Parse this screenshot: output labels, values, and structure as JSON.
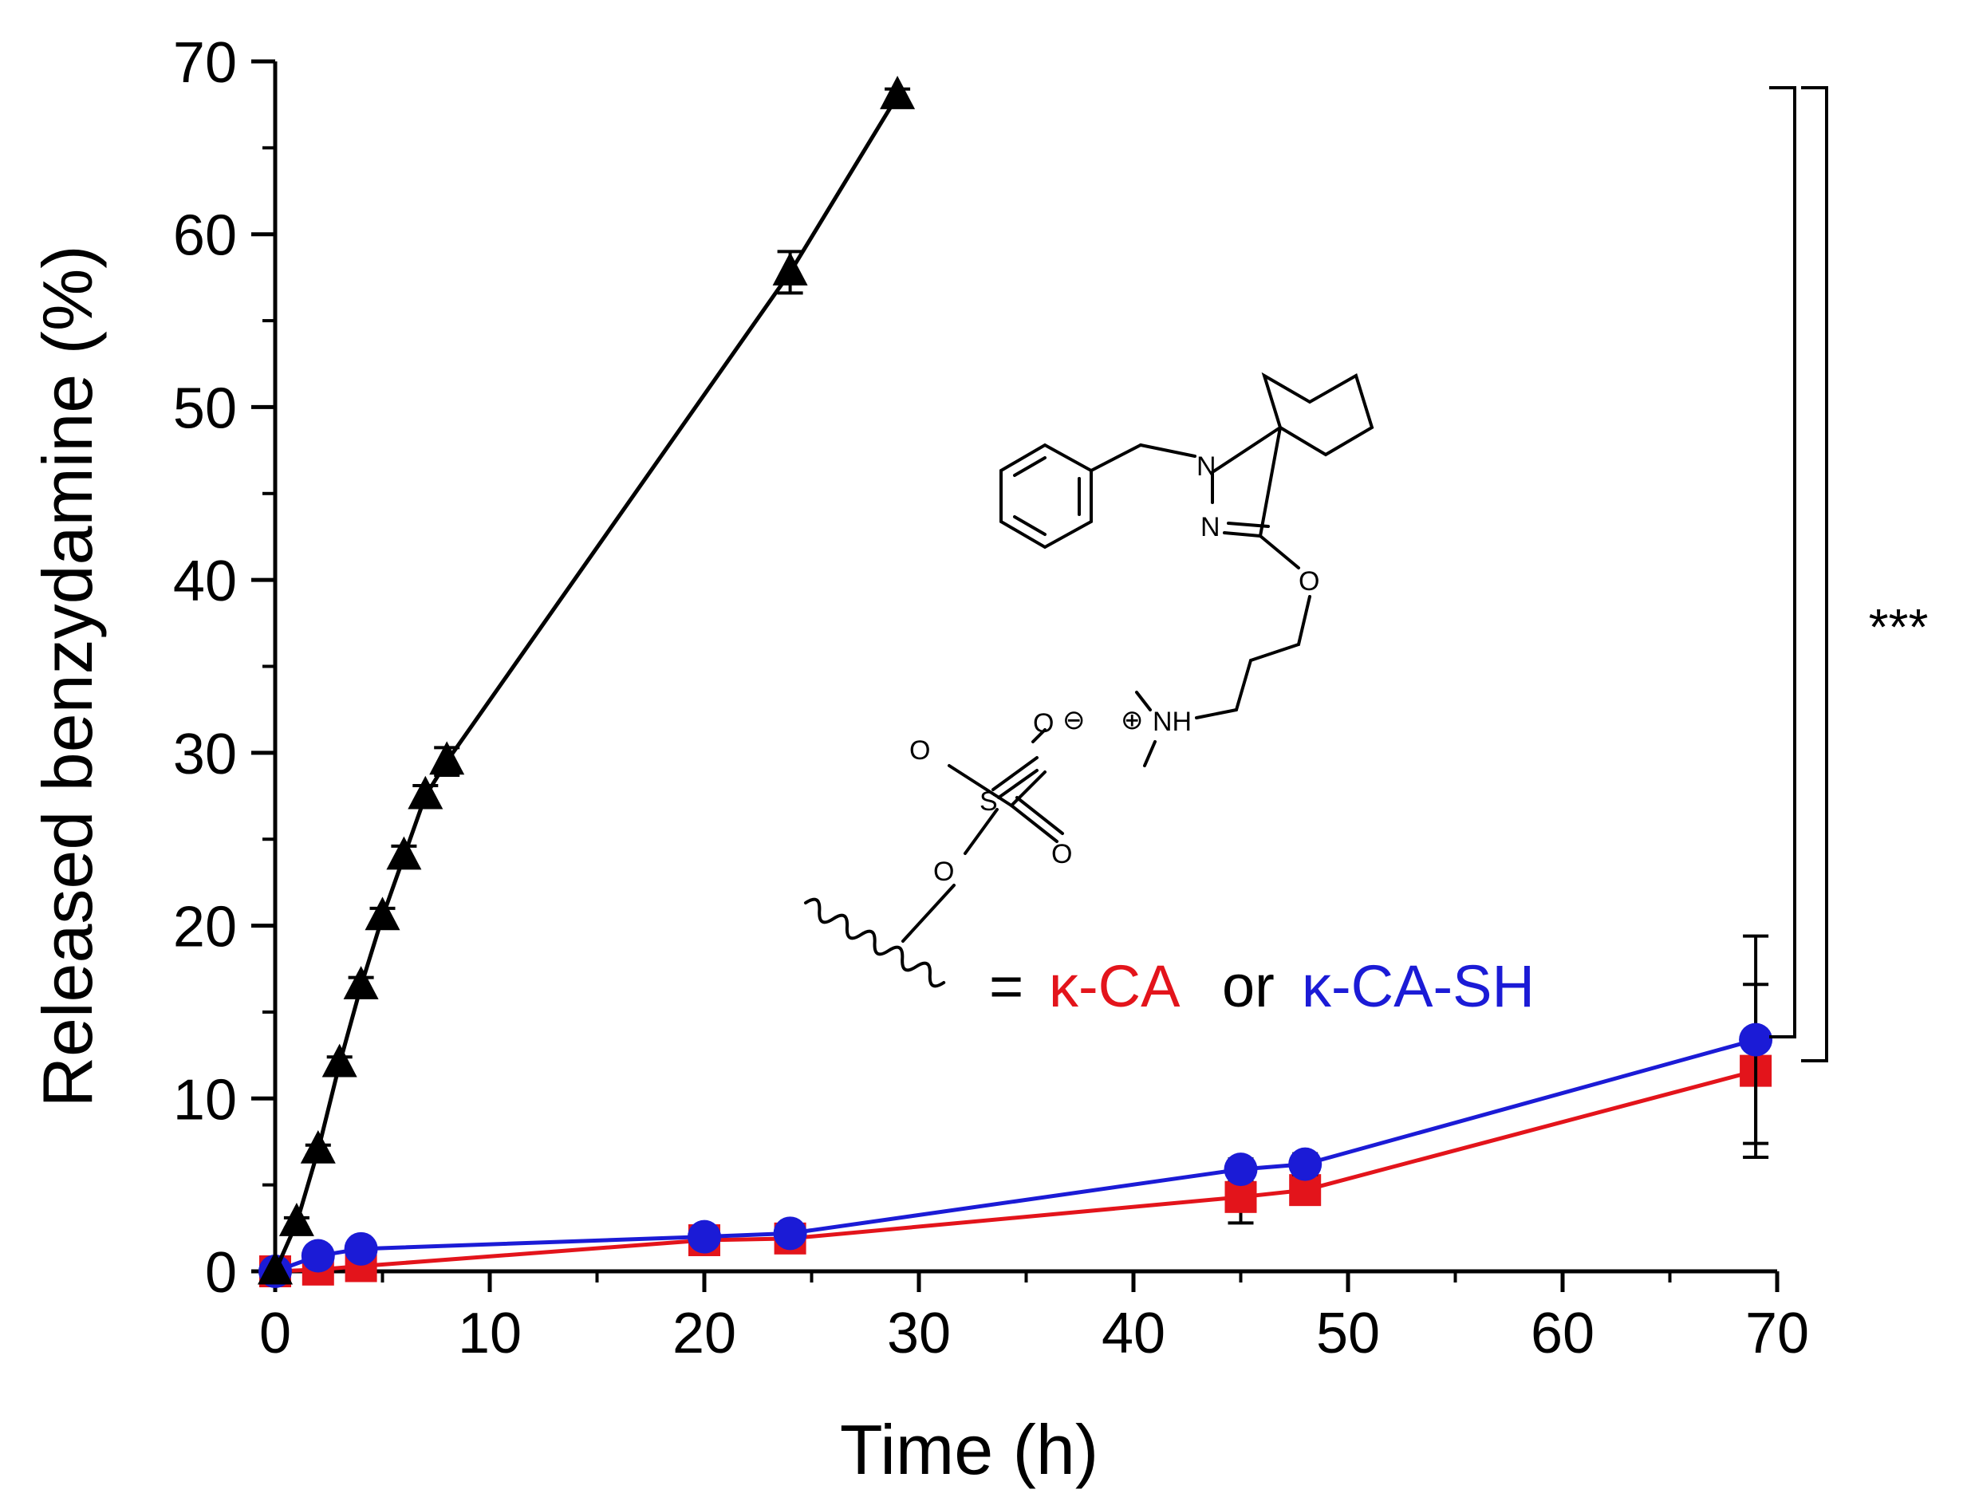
{
  "chart_data": {
    "type": "line",
    "xlabel": "Time (h)",
    "ylabel": "Released benzydamine (%)",
    "xlim": [
      0,
      70
    ],
    "ylim": [
      0,
      70
    ],
    "xticks": [
      0,
      10,
      20,
      30,
      40,
      50,
      60,
      70
    ],
    "yticks": [
      0,
      10,
      20,
      30,
      40,
      50,
      60,
      70
    ],
    "grid": false,
    "series": [
      {
        "color": "#000000",
        "marker": "triangle",
        "x": [
          0,
          1,
          2,
          3,
          4,
          5,
          6,
          7,
          8,
          24,
          29
        ],
        "y": [
          0,
          2.8,
          7.0,
          12.0,
          16.5,
          20.5,
          24.0,
          27.5,
          29.5,
          57.8,
          68.0
        ],
        "err": [
          0,
          0.3,
          0.3,
          0.4,
          0.5,
          0.5,
          0.6,
          0.6,
          0.8,
          1.2,
          0.4
        ]
      },
      {
        "color": "#e3141b",
        "marker": "square",
        "x": [
          0,
          2,
          4,
          20,
          24,
          45,
          48,
          69
        ],
        "y": [
          0,
          0.1,
          0.3,
          1.8,
          1.9,
          4.3,
          4.7,
          11.6
        ],
        "err": [
          0,
          0.2,
          0.3,
          0.4,
          0.4,
          1.5,
          0.8,
          5.0
        ]
      },
      {
        "color": "#1b1bd6",
        "marker": "circle",
        "x": [
          0,
          2,
          4,
          20,
          24,
          45,
          48,
          69
        ],
        "y": [
          0,
          0.9,
          1.3,
          2.0,
          2.2,
          5.9,
          6.2,
          13.4
        ],
        "err": [
          0,
          0.3,
          0.3,
          0.4,
          0.4,
          0.6,
          0.6,
          6.0
        ]
      }
    ],
    "annotations": {
      "significance": "***",
      "legend_equals": "=",
      "legend_red": "κ-CA",
      "legend_or": "or",
      "legend_blue": "κ-CA-SH"
    },
    "structure_labels": {
      "n1": "N",
      "n2": "N",
      "o_ether": "O",
      "nh": "NH",
      "plus": "⊕",
      "minus": "⊖",
      "s": "S",
      "o1": "O",
      "o2": "O",
      "o3": "O",
      "o4": "O"
    }
  }
}
